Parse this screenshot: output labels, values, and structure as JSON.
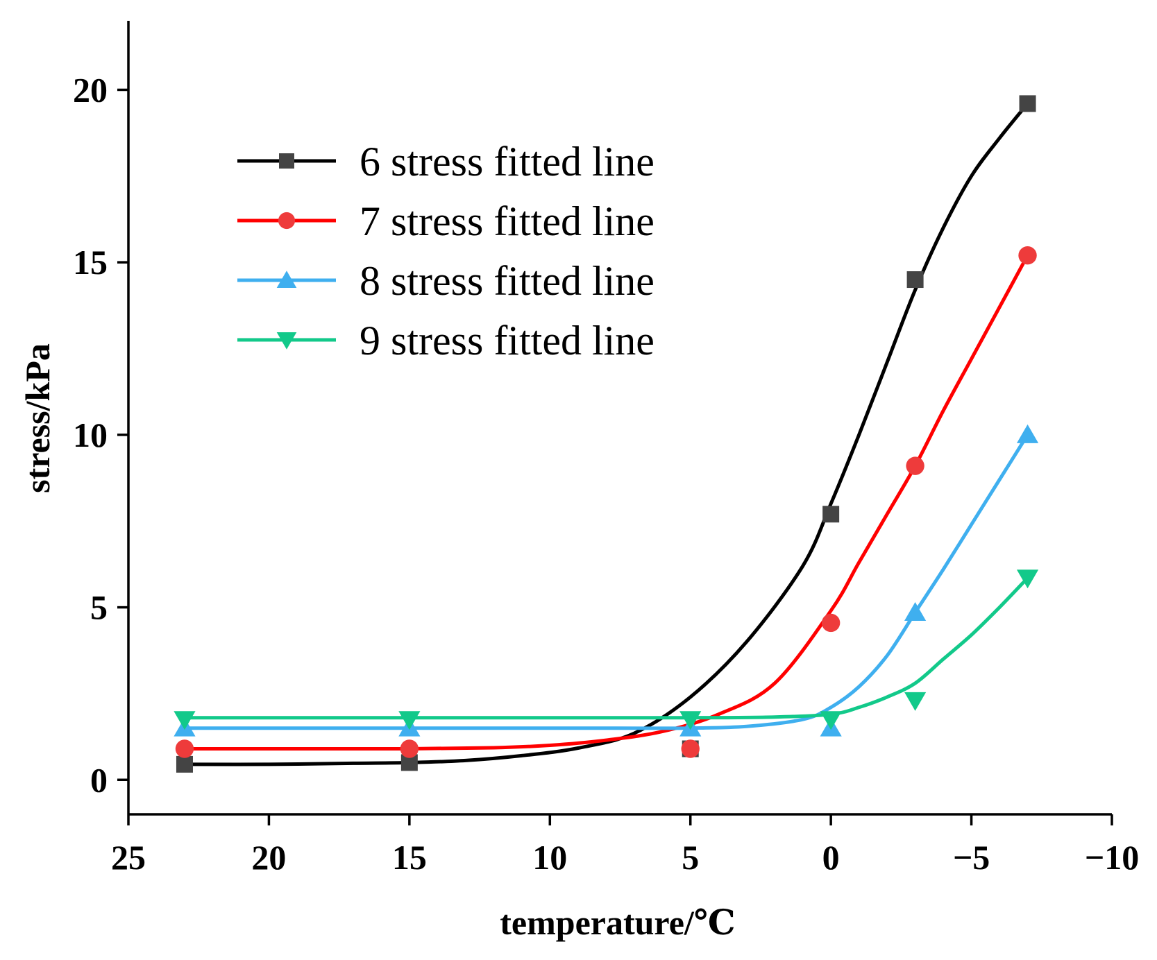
{
  "chart_data": {
    "type": "line",
    "title": "",
    "xlabel": "temperature/℃",
    "ylabel": "stress/kPa",
    "xlim": [
      25,
      -10
    ],
    "ylim": [
      -1,
      22
    ],
    "x_reversed": true,
    "grid": false,
    "legend_position": "top-left",
    "xticks": [
      25,
      20,
      15,
      10,
      5,
      0,
      -5,
      -10
    ],
    "xtick_labels": [
      "25",
      "20",
      "15",
      "10",
      "5",
      "0",
      "−5",
      "−10"
    ],
    "yticks": [
      0,
      5,
      10,
      15,
      20
    ],
    "ytick_labels": [
      "0",
      "5",
      "10",
      "15",
      "20"
    ],
    "series": [
      {
        "name": "6 stress fitted line",
        "color": "#000000",
        "marker_color": "#444444",
        "marker": "square",
        "points": [
          [
            23,
            0.45
          ],
          [
            15,
            0.5
          ],
          [
            5,
            0.9
          ],
          [
            0,
            7.7
          ],
          [
            -3,
            14.5
          ],
          [
            -7,
            19.6
          ]
        ],
        "fit": [
          [
            23,
            0.45
          ],
          [
            20,
            0.45
          ],
          [
            17,
            0.48
          ],
          [
            15,
            0.5
          ],
          [
            13,
            0.56
          ],
          [
            11,
            0.7
          ],
          [
            9,
            0.92
          ],
          [
            7,
            1.35
          ],
          [
            5,
            2.4
          ],
          [
            3,
            4.0
          ],
          [
            1,
            6.2
          ],
          [
            0,
            8.0
          ],
          [
            -1,
            10.0
          ],
          [
            -2,
            12.1
          ],
          [
            -3,
            14.2
          ],
          [
            -4,
            16.0
          ],
          [
            -5,
            17.5
          ],
          [
            -6,
            18.6
          ],
          [
            -7,
            19.6
          ]
        ]
      },
      {
        "name": "7 stress fitted line",
        "color": "#ff0000",
        "marker_color": "#ee3b3b",
        "marker": "circle",
        "points": [
          [
            23,
            0.9
          ],
          [
            15,
            0.9
          ],
          [
            5,
            0.9
          ],
          [
            0,
            4.55
          ],
          [
            -3,
            9.1
          ],
          [
            -7,
            15.2
          ]
        ],
        "fit": [
          [
            23,
            0.9
          ],
          [
            19,
            0.9
          ],
          [
            15,
            0.9
          ],
          [
            12,
            0.93
          ],
          [
            10,
            1.0
          ],
          [
            8,
            1.15
          ],
          [
            6,
            1.4
          ],
          [
            4,
            1.9
          ],
          [
            2,
            2.8
          ],
          [
            0,
            4.9
          ],
          [
            -1,
            6.3
          ],
          [
            -2,
            7.7
          ],
          [
            -3,
            9.1
          ],
          [
            -4,
            10.7
          ],
          [
            -5,
            12.2
          ],
          [
            -6,
            13.7
          ],
          [
            -7,
            15.2
          ]
        ]
      },
      {
        "name": "8 stress fitted line",
        "color": "#3fafef",
        "marker_color": "#3fafef",
        "marker": "triangle-up",
        "points": [
          [
            23,
            1.5
          ],
          [
            15,
            1.5
          ],
          [
            5,
            1.5
          ],
          [
            0,
            1.5
          ],
          [
            -3,
            4.85
          ],
          [
            -7,
            10.0
          ]
        ],
        "fit": [
          [
            23,
            1.5
          ],
          [
            15,
            1.5
          ],
          [
            8,
            1.5
          ],
          [
            5,
            1.5
          ],
          [
            3,
            1.55
          ],
          [
            1,
            1.75
          ],
          [
            0,
            2.1
          ],
          [
            -1,
            2.7
          ],
          [
            -2,
            3.6
          ],
          [
            -3,
            4.85
          ],
          [
            -4,
            6.1
          ],
          [
            -5,
            7.4
          ],
          [
            -6,
            8.7
          ],
          [
            -7,
            10.0
          ]
        ]
      },
      {
        "name": "9 stress fitted line",
        "color": "#12c98a",
        "marker_color": "#12c98a",
        "marker": "triangle-down",
        "points": [
          [
            23,
            1.75
          ],
          [
            15,
            1.75
          ],
          [
            5,
            1.75
          ],
          [
            0,
            1.75
          ],
          [
            -3,
            2.3
          ],
          [
            -7,
            5.85
          ]
        ],
        "fit": [
          [
            23,
            1.8
          ],
          [
            15,
            1.8
          ],
          [
            8,
            1.8
          ],
          [
            5,
            1.8
          ],
          [
            2,
            1.82
          ],
          [
            0,
            1.9
          ],
          [
            -1,
            2.1
          ],
          [
            -2,
            2.4
          ],
          [
            -3,
            2.8
          ],
          [
            -4,
            3.5
          ],
          [
            -5,
            4.2
          ],
          [
            -6,
            5.0
          ],
          [
            -7,
            5.85
          ]
        ]
      }
    ]
  }
}
